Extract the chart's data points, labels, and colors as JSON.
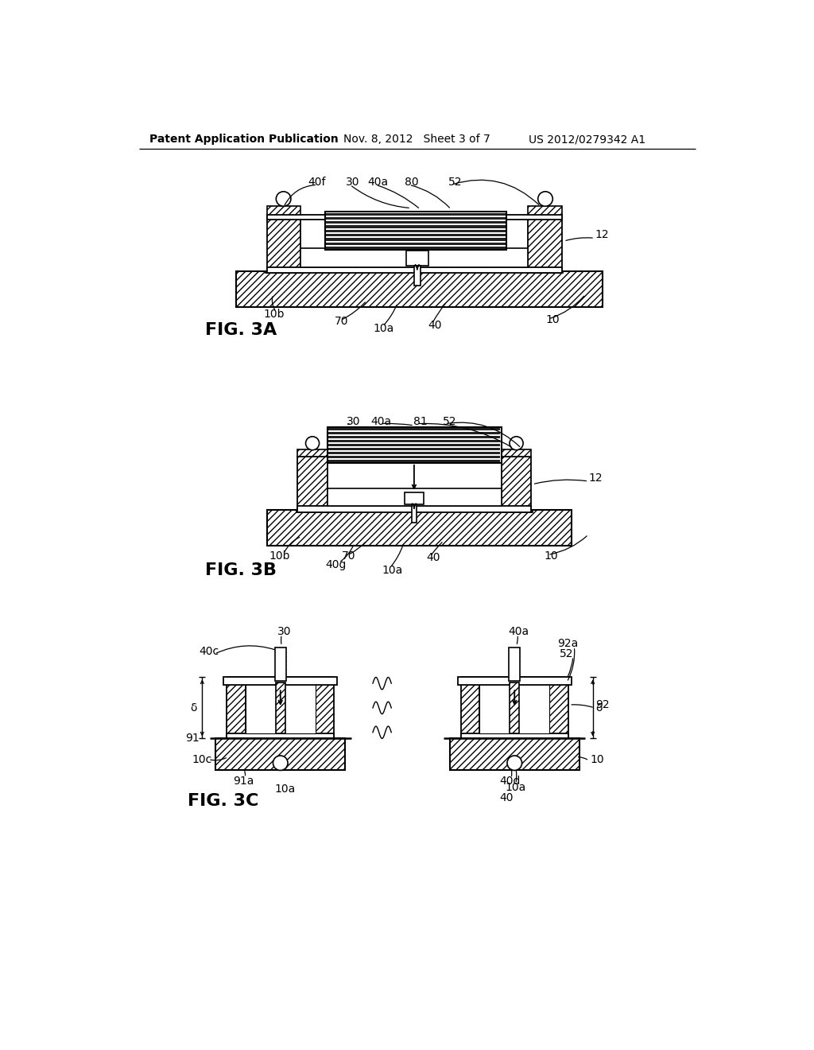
{
  "bg_color": "#ffffff",
  "header_left": "Patent Application Publication",
  "header_center": "Nov. 8, 2012   Sheet 3 of 7",
  "header_right": "US 2012/0279342 A1",
  "fig3a_label": "FIG. 3A",
  "fig3b_label": "FIG. 3B",
  "fig3c_label": "FIG. 3C"
}
